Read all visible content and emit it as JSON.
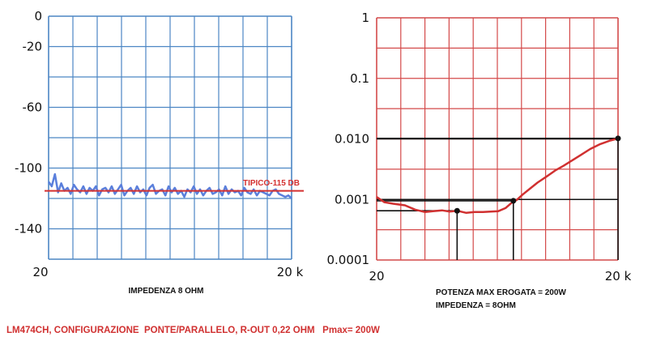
{
  "colors": {
    "left_grid": "#4c86c4",
    "right_grid": "#d44a4a",
    "left_trace": "#5a7fdc",
    "reference": "#d43030",
    "right_trace": "#d03030",
    "black": "#111111",
    "caption": "#d03030"
  },
  "caption": "LM474CH, CONFIGURAZIONE  PONTE/PARALLELO, R-OUT 0,22 OHM   Pmax= 200W",
  "chart_data": [
    {
      "type": "line",
      "yticks": [
        "0",
        "-20",
        "-60",
        "-100",
        "-140"
      ],
      "ytick_values": [
        0,
        -20,
        -60,
        -100,
        -140
      ],
      "xticks": [
        "20",
        "20 k"
      ],
      "xlabel": "IMPEDENZA 8 OHM",
      "ylim": [
        0,
        -160
      ],
      "grid": true,
      "reference_line": {
        "label": "TIPICO-115 DB",
        "value": -115
      },
      "series": [
        {
          "values": [
            -109,
            -112,
            -104,
            -116,
            -110,
            -115,
            -113,
            -117,
            -111,
            -114,
            -116,
            -112,
            -117,
            -113,
            -115,
            -112,
            -118,
            -114,
            -113,
            -116,
            -112,
            -117,
            -114,
            -111,
            -118,
            -115,
            -113,
            -117,
            -112,
            -116,
            -114,
            -118,
            -113,
            -111,
            -117,
            -115,
            -114,
            -118,
            -112,
            -116,
            -113,
            -117,
            -115,
            -119,
            -114,
            -116,
            -112,
            -117,
            -114,
            -118,
            -115,
            -113,
            -117,
            -116,
            -114,
            -118,
            -112,
            -117,
            -114,
            -116,
            -115,
            -118,
            -113,
            -116,
            -117,
            -114,
            -118,
            -115,
            -116,
            -117,
            -118,
            -115,
            -114,
            -117,
            -118,
            -119,
            -118,
            -120
          ]
        }
      ]
    },
    {
      "type": "line",
      "yscale": "log",
      "yticks": [
        "1",
        "0.1",
        "0.010",
        "0.001",
        "0.0001"
      ],
      "ytick_values": [
        1,
        0.1,
        0.01,
        0.001,
        0.0001
      ],
      "xticks": [
        "20",
        "20 k"
      ],
      "xscale": "log",
      "xlim": [
        20,
        20000
      ],
      "ylim": [
        0.0001,
        1
      ],
      "grid": true,
      "notes": [
        "POTENZA MAX EROGATA = 200W",
        "IMPEDENZA = 8OHM"
      ],
      "series": [
        {
          "x": [
            20,
            25,
            32,
            45,
            60,
            80,
            100,
            130,
            160,
            200,
            260,
            330,
            420,
            520,
            650,
            800,
            950,
            1100,
            1300,
            1600,
            2000,
            2600,
            3300,
            4200,
            5500,
            7000,
            9000,
            12000,
            16000,
            20000
          ],
          "y": [
            0.0011,
            0.0009,
            0.00085,
            0.0008,
            0.00068,
            0.00062,
            0.00064,
            0.00066,
            0.00063,
            0.00065,
            0.0006,
            0.00062,
            0.00062,
            0.00063,
            0.00064,
            0.00072,
            0.00088,
            0.00098,
            0.0012,
            0.0015,
            0.0019,
            0.0024,
            0.003,
            0.0036,
            0.0045,
            0.0055,
            0.0068,
            0.0082,
            0.0094,
            0.0102
          ]
        }
      ],
      "markers": [
        {
          "x": 200,
          "y": 0.00065
        },
        {
          "x": 1000,
          "y": 0.00095
        },
        {
          "x": 20000,
          "y": 0.0102
        }
      ],
      "guide_levels": [
        0.01,
        0.001
      ]
    }
  ]
}
